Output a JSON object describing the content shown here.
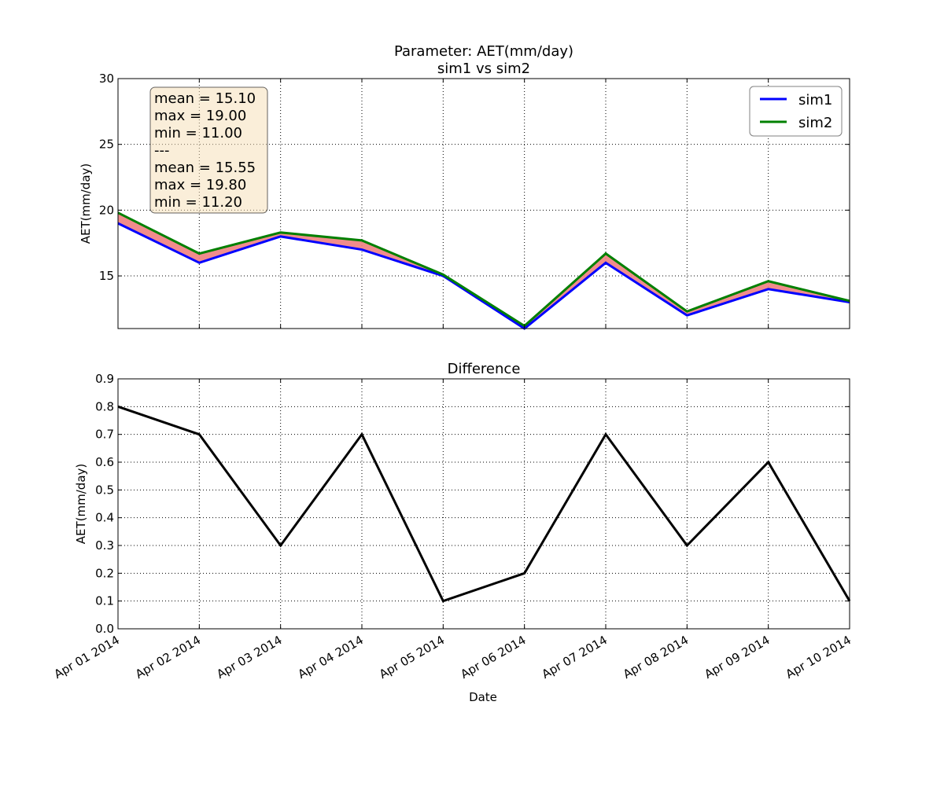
{
  "chart_data": [
    {
      "type": "line",
      "title": "Parameter: AET(mm/day)",
      "subtitle": "sim1 vs sim2",
      "xlabel": "",
      "ylabel": "AET(mm/day)",
      "x": [
        "Apr 01 2014",
        "Apr 02 2014",
        "Apr 03 2014",
        "Apr 04 2014",
        "Apr 05 2014",
        "Apr 06 2014",
        "Apr 07 2014",
        "Apr 08 2014",
        "Apr 09 2014",
        "Apr 10 2014"
      ],
      "ylim": [
        11,
        30
      ],
      "yticks": [
        "15",
        "20",
        "25",
        "30"
      ],
      "grid": true,
      "legend_position": "top-right",
      "fill_between": {
        "series": [
          "sim1",
          "sim2"
        ],
        "color": "#f08080"
      },
      "series": [
        {
          "name": "sim1",
          "color": "#0000ff",
          "values": [
            19,
            16,
            18,
            17,
            15,
            11,
            16,
            12,
            14,
            13
          ]
        },
        {
          "name": "sim2",
          "color": "#008000",
          "values": [
            19.8,
            16.7,
            18.3,
            17.7,
            15.1,
            11.2,
            16.7,
            12.3,
            14.6,
            13.1
          ]
        }
      ],
      "stats_box": {
        "lines": [
          "mean = 15.10",
          "max = 19.00",
          "min = 11.00",
          "---",
          "mean = 15.55",
          "max = 19.80",
          "min = 11.20"
        ],
        "background": "#f5deb3"
      }
    },
    {
      "type": "line",
      "title": "Difference",
      "xlabel": "Date",
      "ylabel": "AET(mm/day)",
      "x": [
        "Apr 01 2014",
        "Apr 02 2014",
        "Apr 03 2014",
        "Apr 04 2014",
        "Apr 05 2014",
        "Apr 06 2014",
        "Apr 07 2014",
        "Apr 08 2014",
        "Apr 09 2014",
        "Apr 10 2014"
      ],
      "ylim": [
        0,
        0.9
      ],
      "yticks": [
        "0.0",
        "0.1",
        "0.2",
        "0.3",
        "0.4",
        "0.5",
        "0.6",
        "0.7",
        "0.8",
        "0.9"
      ],
      "grid": true,
      "series": [
        {
          "color": "#000000",
          "values": [
            0.8,
            0.7,
            0.3,
            0.7,
            0.1,
            0.2,
            0.7,
            0.3,
            0.6,
            0.1
          ]
        }
      ]
    }
  ]
}
